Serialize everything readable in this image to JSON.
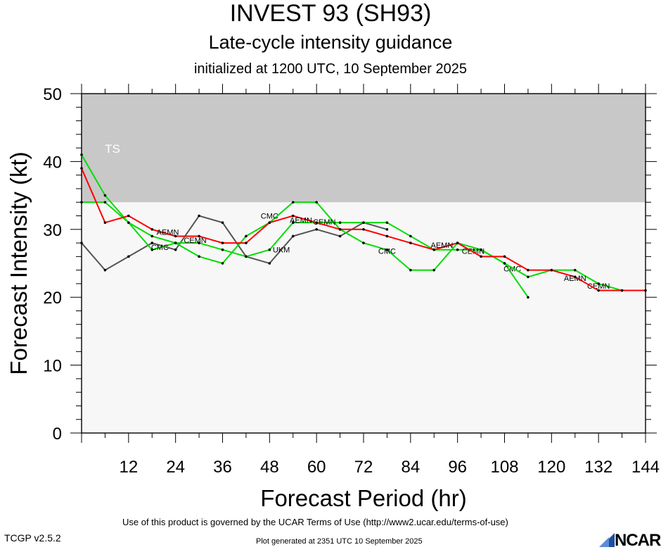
{
  "header": {
    "title": "INVEST 93 (SH93)",
    "subtitle": "Late-cycle intensity guidance",
    "init_line": "initialized at 1200 UTC, 10 September 2025"
  },
  "footer": {
    "terms": "Use of this product is governed by the UCAR Terms of Use (http://www2.ucar.edu/terms-of-use)",
    "version": "TCGP v2.5.2",
    "generated": "Plot generated at 2351 UTC   10 September 2025",
    "logo_text": "NCAR"
  },
  "chart_data": {
    "type": "line",
    "xlabel": "Forecast Period (hr)",
    "ylabel": "Forecast Intensity (kt)",
    "xlim": [
      0,
      144
    ],
    "ylim": [
      0,
      50
    ],
    "xticks": [
      12,
      24,
      36,
      48,
      60,
      72,
      84,
      96,
      108,
      120,
      132,
      144
    ],
    "yticks": [
      0,
      10,
      20,
      30,
      40,
      50
    ],
    "grid": false,
    "bands": [
      {
        "label": "TS",
        "from": 34,
        "to": 50,
        "color": "#c8c8c8"
      }
    ],
    "plot_background": "#f7f7f7",
    "series": [
      {
        "name": "AEMN",
        "color": "#ff0000",
        "x": [
          0,
          6,
          12,
          18,
          24,
          30,
          36,
          42,
          48,
          54,
          60,
          66,
          72,
          78,
          84,
          90,
          96,
          102,
          108,
          114,
          120,
          126,
          132,
          138,
          144
        ],
        "y": [
          39,
          31,
          32,
          30,
          29,
          29,
          28,
          28,
          31,
          32,
          31,
          30,
          30,
          29,
          28,
          27,
          28,
          26,
          26,
          24,
          24,
          23,
          21,
          21,
          21
        ],
        "labels": [
          {
            "x": 22,
            "y": 29.6
          },
          {
            "x": 56,
            "y": 31.4
          },
          {
            "x": 92,
            "y": 27.7
          },
          {
            "x": 126,
            "y": 22.8
          }
        ]
      },
      {
        "name": "CEMN",
        "color": "#00dd00",
        "x": [
          0,
          6,
          12,
          18,
          24,
          30,
          36,
          42,
          48,
          54,
          60,
          66,
          72,
          78,
          84,
          90,
          96,
          102,
          108,
          114,
          120,
          126,
          132,
          138
        ],
        "y": [
          41,
          35,
          31,
          29,
          28,
          28,
          27,
          26,
          27,
          31,
          31,
          31,
          31,
          31,
          29,
          27,
          27,
          27,
          25,
          23,
          24,
          24,
          22,
          21
        ],
        "labels": [
          {
            "x": 29,
            "y": 28.4
          },
          {
            "x": 62,
            "y": 31.1
          },
          {
            "x": 100,
            "y": 26.8
          },
          {
            "x": 132,
            "y": 21.7
          }
        ]
      },
      {
        "name": "CMC",
        "color": "#00dd00",
        "x": [
          0,
          6,
          12,
          18,
          24,
          30,
          36,
          42,
          48,
          54,
          60,
          66,
          72,
          78,
          84,
          90,
          96,
          102,
          108,
          114
        ],
        "y": [
          34,
          34,
          31,
          27,
          28,
          26,
          25,
          29,
          31,
          34,
          34,
          30,
          28,
          27,
          24,
          24,
          28,
          27,
          25,
          20
        ],
        "labels": [
          {
            "x": 20,
            "y": 27.4
          },
          {
            "x": 48,
            "y": 32.0
          },
          {
            "x": 78,
            "y": 26.8
          },
          {
            "x": 110,
            "y": 24.2
          }
        ]
      },
      {
        "name": "UKM",
        "color": "#555555",
        "x": [
          0,
          6,
          12,
          18,
          24,
          30,
          36,
          42,
          48,
          54,
          60,
          66,
          72,
          78
        ],
        "y": [
          28,
          24,
          26,
          28,
          27,
          32,
          31,
          26,
          25,
          29,
          30,
          29,
          31,
          30
        ],
        "labels": [
          {
            "x": 51,
            "y": 27.0
          }
        ]
      }
    ]
  }
}
